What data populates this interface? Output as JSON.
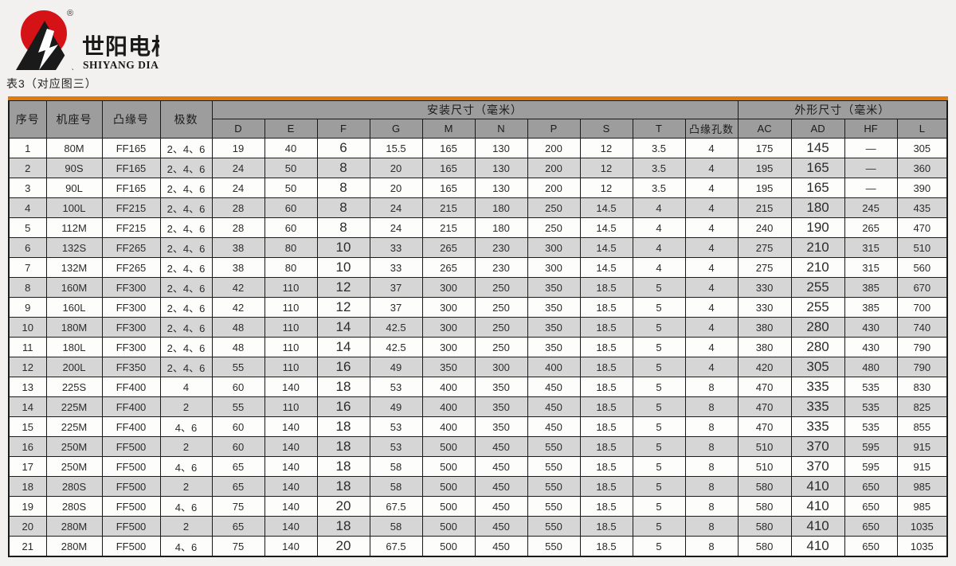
{
  "logo": {
    "brand_cn": "世阳电机",
    "brand_en": "SHIYANG DIANJI",
    "registered_mark": "®"
  },
  "caption": "表3（对应图三）",
  "colors": {
    "accent_orange": "#e2790f",
    "header_gray": "#9d9d9d",
    "alt_row_gray": "#d6d6d6",
    "logo_red": "#d51317",
    "logo_black": "#1a1a1a"
  },
  "table": {
    "row_headers": [
      "序号",
      "机座号",
      "凸缘号",
      "极数"
    ],
    "span_headers": {
      "install": "安装尺寸（毫米）",
      "outline": "外形尺寸（毫米）"
    },
    "dim_columns": [
      "D",
      "E",
      "F",
      "G",
      "M",
      "N",
      "P",
      "S",
      "T",
      "凸缘孔数"
    ],
    "outline_columns": [
      "AC",
      "AD",
      "HF",
      "L"
    ],
    "rows": [
      [
        "1",
        "80M",
        "FF165",
        "2、4、6",
        "19",
        "40",
        "6",
        "15.5",
        "165",
        "130",
        "200",
        "12",
        "3.5",
        "4",
        "175",
        "145",
        "—",
        "305"
      ],
      [
        "2",
        "90S",
        "FF165",
        "2、4、6",
        "24",
        "50",
        "8",
        "20",
        "165",
        "130",
        "200",
        "12",
        "3.5",
        "4",
        "195",
        "165",
        "—",
        "360"
      ],
      [
        "3",
        "90L",
        "FF165",
        "2、4、6",
        "24",
        "50",
        "8",
        "20",
        "165",
        "130",
        "200",
        "12",
        "3.5",
        "4",
        "195",
        "165",
        "—",
        "390"
      ],
      [
        "4",
        "100L",
        "FF215",
        "2、4、6",
        "28",
        "60",
        "8",
        "24",
        "215",
        "180",
        "250",
        "14.5",
        "4",
        "4",
        "215",
        "180",
        "245",
        "435"
      ],
      [
        "5",
        "112M",
        "FF215",
        "2、4、6",
        "28",
        "60",
        "8",
        "24",
        "215",
        "180",
        "250",
        "14.5",
        "4",
        "4",
        "240",
        "190",
        "265",
        "470"
      ],
      [
        "6",
        "132S",
        "FF265",
        "2、4、6",
        "38",
        "80",
        "10",
        "33",
        "265",
        "230",
        "300",
        "14.5",
        "4",
        "4",
        "275",
        "210",
        "315",
        "510"
      ],
      [
        "7",
        "132M",
        "FF265",
        "2、4、6",
        "38",
        "80",
        "10",
        "33",
        "265",
        "230",
        "300",
        "14.5",
        "4",
        "4",
        "275",
        "210",
        "315",
        "560"
      ],
      [
        "8",
        "160M",
        "FF300",
        "2、4、6",
        "42",
        "110",
        "12",
        "37",
        "300",
        "250",
        "350",
        "18.5",
        "5",
        "4",
        "330",
        "255",
        "385",
        "670"
      ],
      [
        "9",
        "160L",
        "FF300",
        "2、4、6",
        "42",
        "110",
        "12",
        "37",
        "300",
        "250",
        "350",
        "18.5",
        "5",
        "4",
        "330",
        "255",
        "385",
        "700"
      ],
      [
        "10",
        "180M",
        "FF300",
        "2、4、6",
        "48",
        "110",
        "14",
        "42.5",
        "300",
        "250",
        "350",
        "18.5",
        "5",
        "4",
        "380",
        "280",
        "430",
        "740"
      ],
      [
        "11",
        "180L",
        "FF300",
        "2、4、6",
        "48",
        "110",
        "14",
        "42.5",
        "300",
        "250",
        "350",
        "18.5",
        "5",
        "4",
        "380",
        "280",
        "430",
        "790"
      ],
      [
        "12",
        "200L",
        "FF350",
        "2、4、6",
        "55",
        "110",
        "16",
        "49",
        "350",
        "300",
        "400",
        "18.5",
        "5",
        "4",
        "420",
        "305",
        "480",
        "790"
      ],
      [
        "13",
        "225S",
        "FF400",
        "4",
        "60",
        "140",
        "18",
        "53",
        "400",
        "350",
        "450",
        "18.5",
        "5",
        "8",
        "470",
        "335",
        "535",
        "830"
      ],
      [
        "14",
        "225M",
        "FF400",
        "2",
        "55",
        "110",
        "16",
        "49",
        "400",
        "350",
        "450",
        "18.5",
        "5",
        "8",
        "470",
        "335",
        "535",
        "825"
      ],
      [
        "15",
        "225M",
        "FF400",
        "4、6",
        "60",
        "140",
        "18",
        "53",
        "400",
        "350",
        "450",
        "18.5",
        "5",
        "8",
        "470",
        "335",
        "535",
        "855"
      ],
      [
        "16",
        "250M",
        "FF500",
        "2",
        "60",
        "140",
        "18",
        "53",
        "500",
        "450",
        "550",
        "18.5",
        "5",
        "8",
        "510",
        "370",
        "595",
        "915"
      ],
      [
        "17",
        "250M",
        "FF500",
        "4、6",
        "65",
        "140",
        "18",
        "58",
        "500",
        "450",
        "550",
        "18.5",
        "5",
        "8",
        "510",
        "370",
        "595",
        "915"
      ],
      [
        "18",
        "280S",
        "FF500",
        "2",
        "65",
        "140",
        "18",
        "58",
        "500",
        "450",
        "550",
        "18.5",
        "5",
        "8",
        "580",
        "410",
        "650",
        "985"
      ],
      [
        "19",
        "280S",
        "FF500",
        "4、6",
        "75",
        "140",
        "20",
        "67.5",
        "500",
        "450",
        "550",
        "18.5",
        "5",
        "8",
        "580",
        "410",
        "650",
        "985"
      ],
      [
        "20",
        "280M",
        "FF500",
        "2",
        "65",
        "140",
        "18",
        "58",
        "500",
        "450",
        "550",
        "18.5",
        "5",
        "8",
        "580",
        "410",
        "650",
        "1035"
      ],
      [
        "21",
        "280M",
        "FF500",
        "4、6",
        "75",
        "140",
        "20",
        "67.5",
        "500",
        "450",
        "550",
        "18.5",
        "5",
        "8",
        "580",
        "410",
        "650",
        "1035"
      ]
    ]
  }
}
